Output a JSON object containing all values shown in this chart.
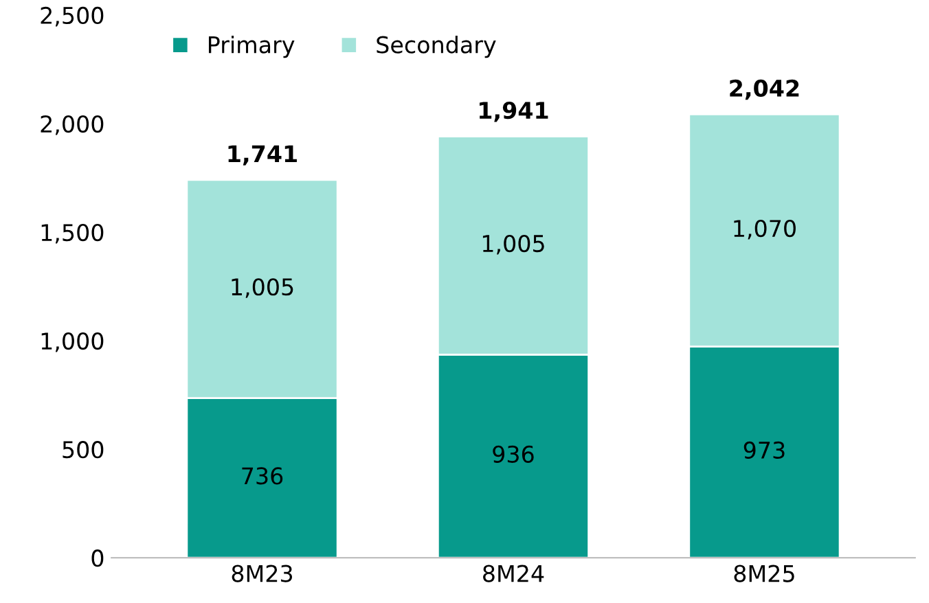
{
  "chart_data": {
    "type": "bar",
    "stacked": true,
    "categories": [
      "8M23",
      "8M24",
      "8M25"
    ],
    "series": [
      {
        "name": "Primary",
        "color": "#079a8c",
        "values": [
          736,
          936,
          973
        ],
        "value_labels": [
          "736",
          "936",
          "973"
        ]
      },
      {
        "name": "Secondary",
        "color": "#a3e3da",
        "values": [
          1005,
          1005,
          1070
        ],
        "value_labels": [
          "1,005",
          "1,005",
          "1,070"
        ]
      }
    ],
    "totals": [
      "1,741",
      "1,941",
      "2,042"
    ],
    "ylim": [
      0,
      2500
    ],
    "yticks": [
      0,
      {
        "value": 500,
        "label": "500"
      },
      {
        "value": 1000,
        "label": "1,000"
      },
      {
        "value": 1500,
        "label": "1,500"
      },
      {
        "value": 2000,
        "label": "2,000"
      },
      {
        "value": 2500,
        "label": "2,500"
      }
    ],
    "grid": false,
    "legend": "top left"
  }
}
